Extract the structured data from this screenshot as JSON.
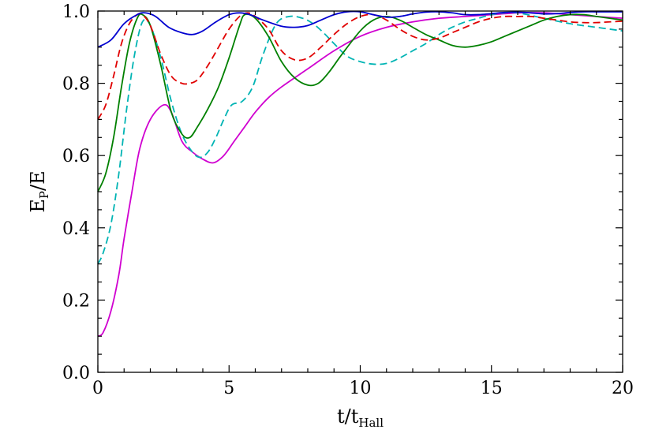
{
  "chart_data": {
    "type": "line",
    "xlabel": {
      "main": "t/t",
      "sub": "Hall"
    },
    "ylabel": {
      "main": "E",
      "sub": "P",
      "rest": "/E"
    },
    "xlim": [
      0,
      20
    ],
    "ylim": [
      0.0,
      1.0
    ],
    "xticks": [
      0,
      5,
      10,
      15,
      20
    ],
    "xtick_labels": [
      "0",
      "5",
      "10",
      "15",
      "20"
    ],
    "yticks": [
      0.0,
      0.2,
      0.4,
      0.6,
      0.8,
      1.0
    ],
    "ytick_labels": [
      "0.0",
      "0.2",
      "0.4",
      "0.6",
      "0.8",
      "1.0"
    ],
    "grid": false,
    "series": [
      {
        "color": "#d000d0",
        "dash": "solid",
        "x": [
          0,
          0.2,
          0.5,
          0.8,
          1.0,
          1.3,
          1.6,
          2.0,
          2.5,
          2.8,
          3.2,
          3.6,
          4.0,
          4.4,
          4.8,
          5.2,
          5.6,
          6.0,
          6.5,
          7.0,
          8.0,
          9.0,
          10.0,
          11.0,
          12.0,
          13.0,
          14.0,
          15.0,
          16.0,
          17.0,
          18.0,
          19.0,
          20.0
        ],
        "y": [
          0.1,
          0.11,
          0.17,
          0.27,
          0.37,
          0.5,
          0.62,
          0.7,
          0.74,
          0.72,
          0.64,
          0.61,
          0.59,
          0.58,
          0.6,
          0.64,
          0.68,
          0.72,
          0.76,
          0.79,
          0.84,
          0.89,
          0.93,
          0.955,
          0.97,
          0.98,
          0.985,
          0.99,
          0.995,
          0.995,
          0.99,
          0.985,
          0.98
        ]
      },
      {
        "color": "#00b4b4",
        "dash": "dashed",
        "x": [
          0,
          0.2,
          0.5,
          0.8,
          1.1,
          1.4,
          1.7,
          2.0,
          2.4,
          2.8,
          3.2,
          3.6,
          3.9,
          4.2,
          4.5,
          4.8,
          5.1,
          5.5,
          5.9,
          6.3,
          6.8,
          7.3,
          7.8,
          8.2,
          8.6,
          9.0,
          9.5,
          10.0,
          10.5,
          11.0,
          11.5,
          12.0,
          12.5,
          13.0,
          13.5,
          14.0,
          14.5,
          15.0,
          15.5,
          16.0,
          17.0,
          18.0,
          19.0,
          20.0
        ],
        "y": [
          0.3,
          0.33,
          0.41,
          0.55,
          0.73,
          0.88,
          0.97,
          0.96,
          0.87,
          0.75,
          0.66,
          0.61,
          0.595,
          0.61,
          0.65,
          0.7,
          0.74,
          0.75,
          0.79,
          0.88,
          0.965,
          0.985,
          0.98,
          0.965,
          0.94,
          0.91,
          0.875,
          0.86,
          0.853,
          0.855,
          0.87,
          0.89,
          0.91,
          0.935,
          0.955,
          0.97,
          0.98,
          0.99,
          0.995,
          0.995,
          0.98,
          0.965,
          0.955,
          0.945
        ]
      },
      {
        "color": "#008000",
        "dash": "solid",
        "x": [
          0,
          0.3,
          0.6,
          0.9,
          1.2,
          1.5,
          1.7,
          2.0,
          2.4,
          2.8,
          3.2,
          3.5,
          3.8,
          4.2,
          4.6,
          5.0,
          5.4,
          5.6,
          6.0,
          6.5,
          7.0,
          7.5,
          8.0,
          8.4,
          8.8,
          9.3,
          10.0,
          10.5,
          11.0,
          11.5,
          12.0,
          12.5,
          13.0,
          13.5,
          14.0,
          14.5,
          15.0,
          15.5,
          16.0,
          16.5,
          17.0,
          17.5,
          18.0,
          18.5,
          19.0,
          19.5,
          20.0
        ],
        "y": [
          0.5,
          0.55,
          0.65,
          0.79,
          0.91,
          0.98,
          0.99,
          0.96,
          0.85,
          0.72,
          0.66,
          0.65,
          0.68,
          0.73,
          0.79,
          0.87,
          0.96,
          0.99,
          0.98,
          0.93,
          0.86,
          0.815,
          0.795,
          0.8,
          0.83,
          0.88,
          0.945,
          0.975,
          0.985,
          0.975,
          0.955,
          0.935,
          0.92,
          0.905,
          0.9,
          0.905,
          0.915,
          0.93,
          0.945,
          0.96,
          0.975,
          0.985,
          0.99,
          0.99,
          0.985,
          0.98,
          0.975
        ]
      },
      {
        "color": "#e00000",
        "dash": "dashed",
        "x": [
          0,
          0.3,
          0.6,
          0.9,
          1.2,
          1.5,
          1.7,
          2.0,
          2.4,
          2.8,
          3.2,
          3.5,
          3.8,
          4.2,
          4.6,
          5.0,
          5.4,
          5.7,
          6.0,
          6.5,
          7.0,
          7.5,
          8.0,
          8.5,
          9.0,
          9.5,
          10.0,
          10.5,
          11.0,
          11.5,
          12.0,
          12.5,
          13.0,
          13.5,
          14.0,
          14.5,
          15.0,
          15.5,
          16.0,
          16.5,
          17.0,
          17.5,
          18.0,
          18.5,
          19.0,
          19.5,
          20.0
        ],
        "y": [
          0.7,
          0.74,
          0.82,
          0.91,
          0.965,
          0.99,
          0.99,
          0.96,
          0.88,
          0.82,
          0.8,
          0.8,
          0.81,
          0.85,
          0.9,
          0.95,
          0.985,
          0.995,
          0.985,
          0.95,
          0.89,
          0.865,
          0.87,
          0.9,
          0.935,
          0.965,
          0.985,
          0.99,
          0.975,
          0.95,
          0.93,
          0.92,
          0.925,
          0.94,
          0.955,
          0.97,
          0.98,
          0.985,
          0.985,
          0.985,
          0.98,
          0.975,
          0.97,
          0.968,
          0.968,
          0.97,
          0.972
        ]
      },
      {
        "color": "#0000d0",
        "dash": "solid",
        "x": [
          0,
          0.5,
          1.0,
          1.5,
          1.8,
          2.2,
          2.7,
          3.2,
          3.6,
          4.0,
          4.5,
          5.0,
          5.4,
          5.8,
          6.3,
          7.0,
          7.5,
          8.0,
          8.5,
          9.0,
          9.5,
          10.0,
          10.5,
          11.0,
          11.5,
          12.0,
          12.5,
          13.0,
          13.5,
          14.0,
          14.5,
          15.0,
          15.5,
          16.0,
          16.5,
          17.0,
          17.5,
          18.0,
          18.5,
          19.0,
          19.5,
          20.0
        ],
        "y": [
          0.9,
          0.92,
          0.965,
          0.99,
          0.995,
          0.985,
          0.955,
          0.94,
          0.935,
          0.945,
          0.97,
          0.99,
          0.995,
          0.99,
          0.975,
          0.958,
          0.955,
          0.96,
          0.975,
          0.99,
          0.998,
          0.998,
          0.99,
          0.983,
          0.985,
          0.992,
          0.997,
          0.998,
          0.995,
          0.99,
          0.99,
          0.993,
          0.996,
          0.997,
          0.995,
          0.992,
          0.993,
          0.996,
          0.998,
          0.998,
          0.998,
          0.998
        ]
      }
    ]
  }
}
